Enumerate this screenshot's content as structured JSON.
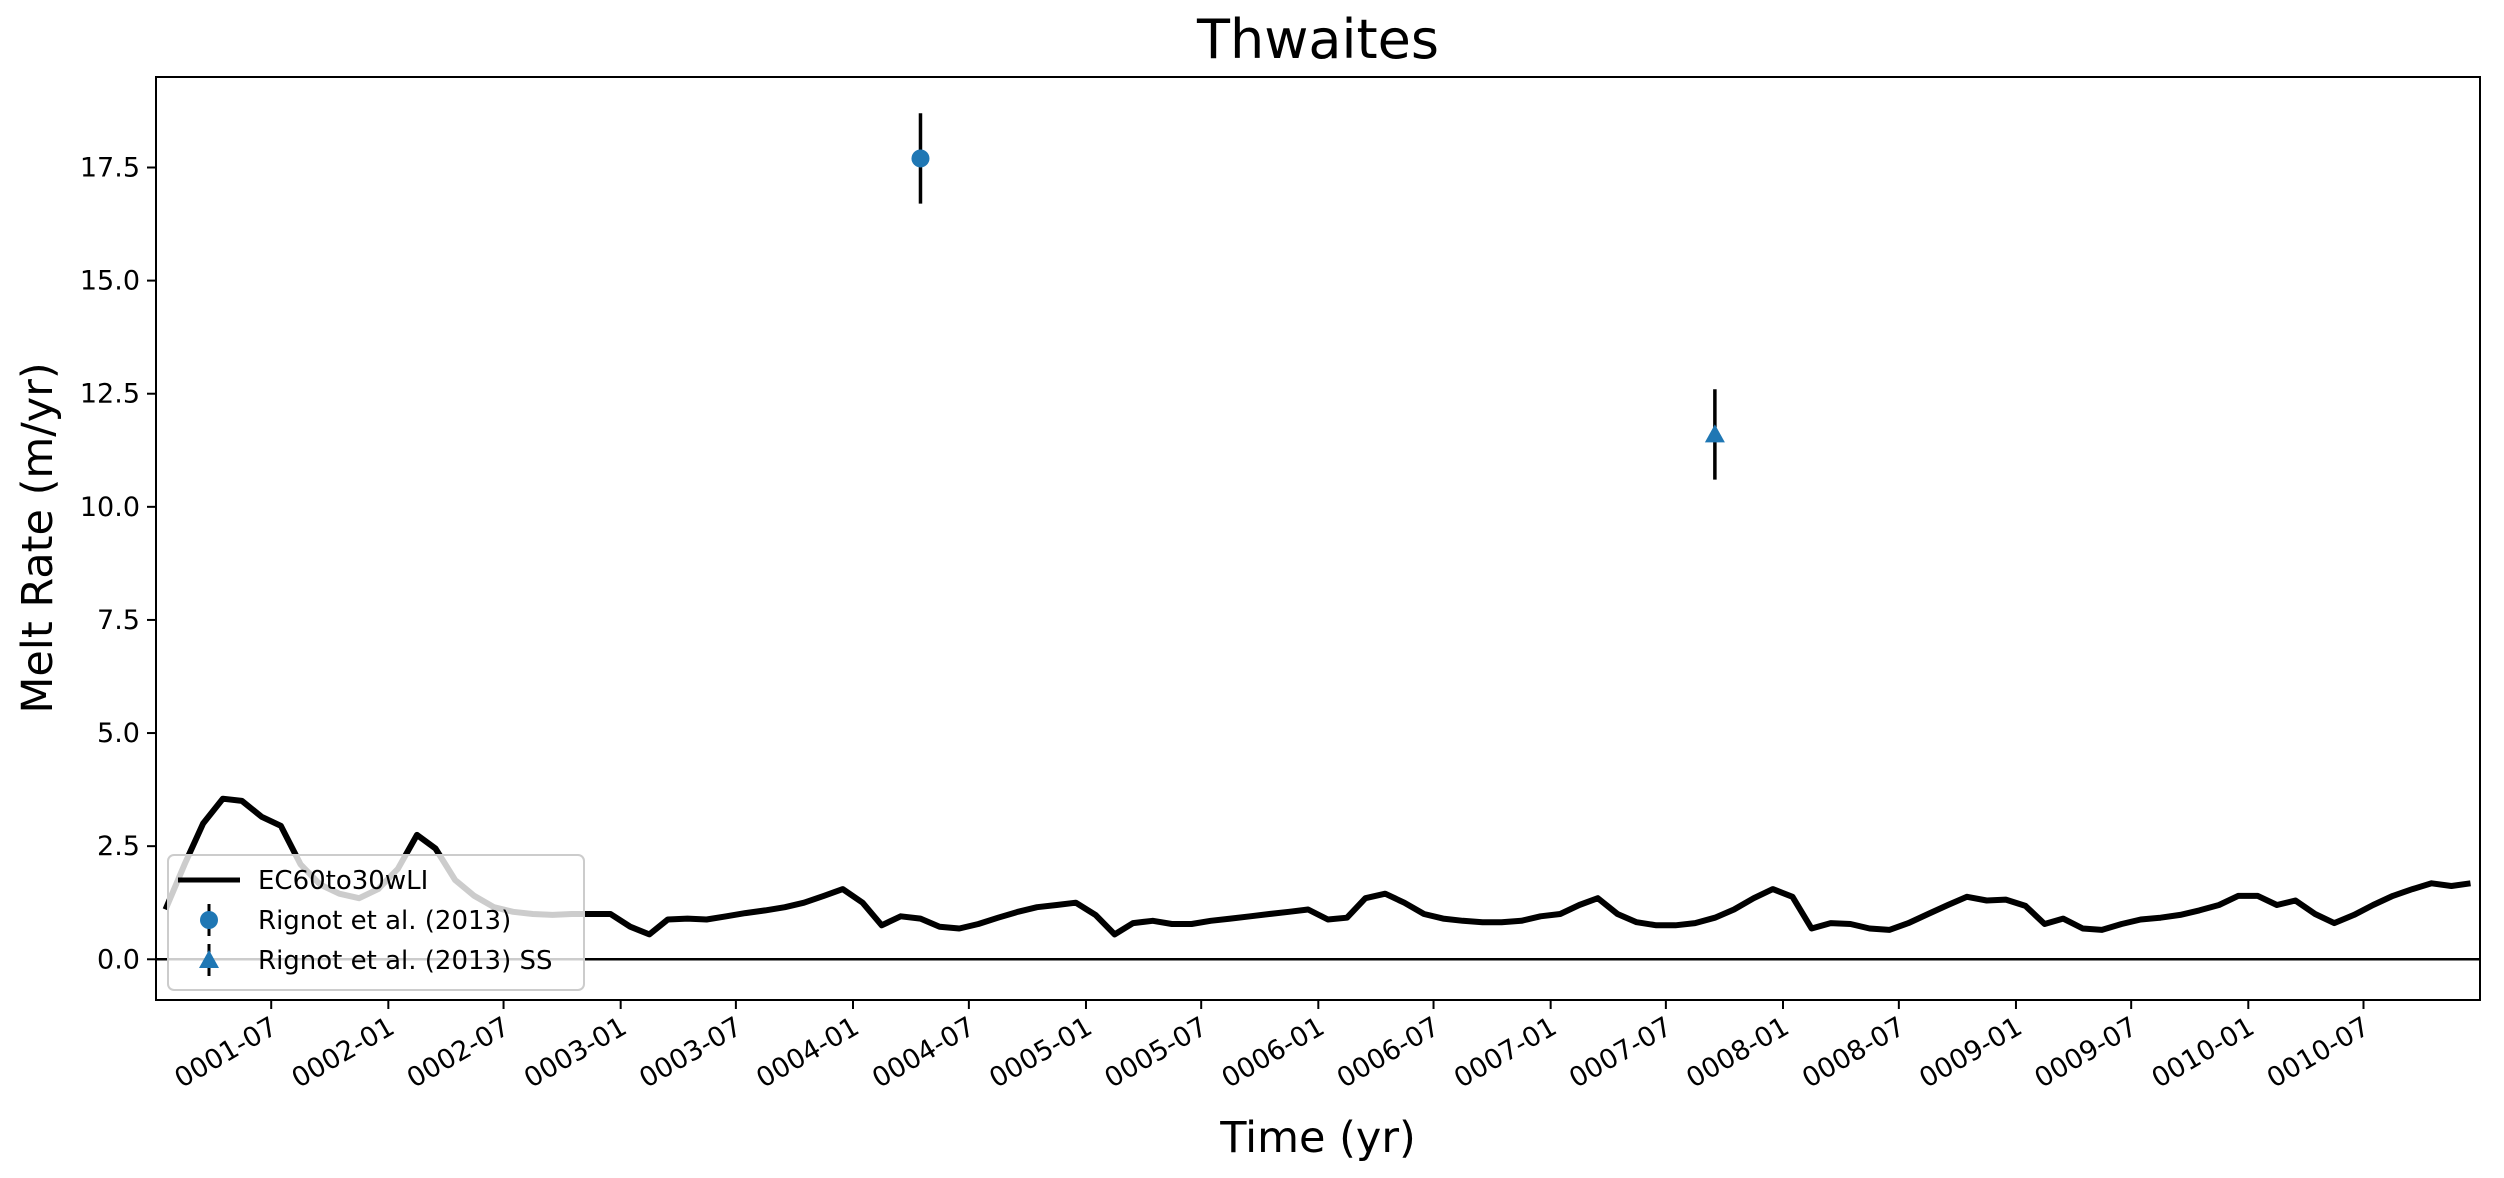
{
  "chart_data": {
    "type": "line",
    "title": "Thwaites",
    "xlabel": "Time (yr)",
    "ylabel": "Melt Rate (m/yr)",
    "xlim": [
      "0001-01-01",
      "0010-12-31"
    ],
    "ylim": [
      -0.9,
      19.5
    ],
    "yticks": [
      0.0,
      2.5,
      5.0,
      7.5,
      10.0,
      12.5,
      15.0,
      17.5
    ],
    "ytick_labels": [
      "0.0",
      "2.5",
      "5.0",
      "7.5",
      "10.0",
      "12.5",
      "15.0",
      "17.5"
    ],
    "xticks": [
      "0001-07-01",
      "0002-01-01",
      "0002-07-01",
      "0003-01-01",
      "0003-07-01",
      "0004-01-01",
      "0004-07-01",
      "0005-01-01",
      "0005-07-01",
      "0006-01-01",
      "0006-07-01",
      "0007-01-01",
      "0007-07-01",
      "0008-01-01",
      "0008-07-01",
      "0009-01-01",
      "0009-07-01",
      "0010-01-01",
      "0010-07-01"
    ],
    "xtick_labels": [
      "0001-07",
      "0002-01",
      "0002-07",
      "0003-01",
      "0003-07",
      "0004-01",
      "0004-07",
      "0005-01",
      "0005-07",
      "0006-01",
      "0006-07",
      "0007-01",
      "0007-07",
      "0008-01",
      "0008-07",
      "0009-01",
      "0009-07",
      "0010-01",
      "0010-07"
    ],
    "grid": false,
    "legend_position": "lower-left",
    "hline": 0,
    "series": [
      {
        "name": "EC60to30wLI",
        "kind": "line",
        "color": "#000000",
        "x": [
          "0001-01-16",
          "0001-02-15",
          "0001-03-16",
          "0001-04-16",
          "0001-05-16",
          "0001-06-16",
          "0001-07-16",
          "0001-08-16",
          "0001-09-16",
          "0001-10-16",
          "0001-11-16",
          "0001-12-16",
          "0002-01-16",
          "0002-02-15",
          "0002-03-16",
          "0002-04-16",
          "0002-05-16",
          "0002-06-16",
          "0002-07-16",
          "0002-08-16",
          "0002-09-16",
          "0002-10-16",
          "0002-11-16",
          "0002-12-16",
          "0003-01-16",
          "0003-02-15",
          "0003-03-16",
          "0003-04-16",
          "0003-05-16",
          "0003-06-16",
          "0003-07-16",
          "0003-08-16",
          "0003-09-16",
          "0003-10-16",
          "0003-11-16",
          "0003-12-16",
          "0004-01-16",
          "0004-02-15",
          "0004-03-16",
          "0004-04-16",
          "0004-05-16",
          "0004-06-16",
          "0004-07-16",
          "0004-08-16",
          "0004-09-16",
          "0004-10-16",
          "0004-11-16",
          "0004-12-16",
          "0005-01-16",
          "0005-02-15",
          "0005-03-16",
          "0005-04-16",
          "0005-05-16",
          "0005-06-16",
          "0005-07-16",
          "0005-08-16",
          "0005-09-16",
          "0005-10-16",
          "0005-11-16",
          "0005-12-16",
          "0006-01-16",
          "0006-02-15",
          "0006-03-16",
          "0006-04-16",
          "0006-05-16",
          "0006-06-16",
          "0006-07-16",
          "0006-08-16",
          "0006-09-16",
          "0006-10-16",
          "0006-11-16",
          "0006-12-16",
          "0007-01-16",
          "0007-02-15",
          "0007-03-16",
          "0007-04-16",
          "0007-05-16",
          "0007-06-16",
          "0007-07-16",
          "0007-08-16",
          "0007-09-16",
          "0007-10-16",
          "0007-11-16",
          "0007-12-16",
          "0008-01-16",
          "0008-02-15",
          "0008-03-16",
          "0008-04-16",
          "0008-05-16",
          "0008-06-16",
          "0008-07-16",
          "0008-08-16",
          "0008-09-16",
          "0008-10-16",
          "0008-11-16",
          "0008-12-16",
          "0009-01-16",
          "0009-02-15",
          "0009-03-16",
          "0009-04-16",
          "0009-05-16",
          "0009-06-16",
          "0009-07-16",
          "0009-08-16",
          "0009-09-16",
          "0009-10-16",
          "0009-11-16",
          "0009-12-16",
          "0010-01-16",
          "0010-02-15",
          "0010-03-16",
          "0010-04-16",
          "0010-05-16",
          "0010-06-16",
          "0010-07-16",
          "0010-08-16",
          "0010-09-16",
          "0010-10-16",
          "0010-11-16",
          "0010-12-16"
        ],
        "y": [
          1.1,
          2.1,
          3.0,
          3.55,
          3.5,
          3.15,
          2.95,
          2.1,
          1.65,
          1.45,
          1.35,
          1.55,
          2.0,
          2.75,
          2.45,
          1.75,
          1.4,
          1.15,
          1.05,
          1.0,
          0.98,
          1.0,
          1.0,
          1.0,
          0.72,
          0.55,
          0.88,
          0.9,
          0.88,
          0.95,
          1.02,
          1.08,
          1.15,
          1.25,
          1.4,
          1.55,
          1.25,
          0.75,
          0.95,
          0.9,
          0.72,
          0.68,
          0.78,
          0.92,
          1.05,
          1.15,
          1.2,
          1.25,
          0.98,
          0.55,
          0.8,
          0.85,
          0.78,
          0.78,
          0.85,
          0.9,
          0.95,
          1.0,
          1.05,
          1.1,
          0.88,
          0.92,
          1.35,
          1.45,
          1.25,
          1.0,
          0.9,
          0.85,
          0.82,
          0.82,
          0.85,
          0.95,
          1.0,
          1.2,
          1.35,
          1.0,
          0.82,
          0.75,
          0.75,
          0.8,
          0.92,
          1.1,
          1.35,
          1.55,
          1.38,
          0.68,
          0.8,
          0.78,
          0.68,
          0.65,
          0.8,
          1.0,
          1.2,
          1.38,
          1.3,
          1.32,
          1.18,
          0.78,
          0.9,
          0.68,
          0.65,
          0.78,
          0.88,
          0.92,
          0.98,
          1.08,
          1.2,
          1.4,
          1.4,
          1.2,
          1.3,
          1.0,
          0.8,
          0.98,
          1.2,
          1.4,
          1.55,
          1.68,
          1.62,
          1.68
        ]
      },
      {
        "name": "Rignot et al. (2013)",
        "kind": "errorbar",
        "marker": "circle",
        "color": "#1f77b4",
        "x": [
          "0004-04-16"
        ],
        "y": [
          17.7
        ],
        "yerr": [
          1.0
        ]
      },
      {
        "name": "Rignot et al. (2013) SS",
        "kind": "errorbar",
        "marker": "triangle",
        "color": "#1f77b4",
        "x": [
          "0007-09-16"
        ],
        "y": [
          11.6
        ],
        "yerr": [
          1.0
        ]
      }
    ]
  }
}
